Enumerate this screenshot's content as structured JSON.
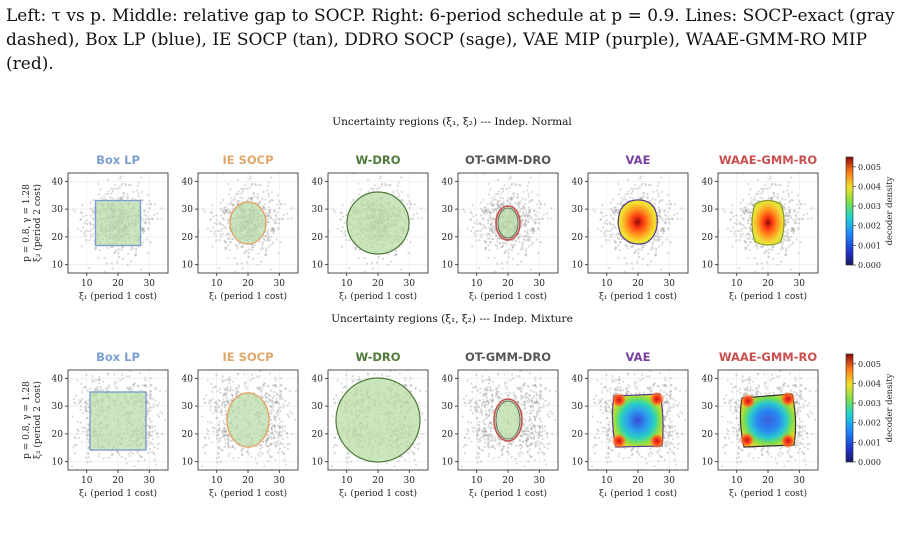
{
  "intro_text": "Left: τ vs p. Middle: relative gap to SOCP. Right: 6-period schedule at p = 0.9. Lines: SOCP-exact (gray dashed), Box LP (blue), IE SOCP (tan), DDRO SOCP (sage), VAE MIP (purple), WAAE-GMM-RO MIP (red).",
  "rows": [
    {
      "title": "Uncertainty regions  (ξ₁, ξ₂)  ---  Indep. Normal",
      "ylabel_line1": "p = 0.8,  γ = 1.28",
      "ylabel_line2": "ξ₂  (period 2 cost)"
    },
    {
      "title": "Uncertainty regions  (ξ₁, ξ₂)  ---  Indep. Mixture",
      "ylabel_line1": "p = 0.8,  γ = 1.28",
      "ylabel_line2": "ξ₂  (period 2 cost)"
    }
  ],
  "panels": [
    {
      "title": "Box LP",
      "color": "#7b9fd0"
    },
    {
      "title": "IE SOCP",
      "color": "#e0a86a"
    },
    {
      "title": "W-DRO",
      "color": "#4f7a3a"
    },
    {
      "title": "OT-GMM-DRO",
      "color": "#555555"
    },
    {
      "title": "VAE",
      "color": "#7a3fa0"
    },
    {
      "title": "WAAE-GMM-RO",
      "color": "#c94f4f"
    }
  ],
  "xlabel": "ξ₁  (period 1 cost)",
  "x_ticks": [
    "10",
    "20",
    "30"
  ],
  "y_ticks": [
    "10",
    "20",
    "30",
    "40"
  ],
  "colorbar": {
    "label": "decoder density",
    "ticks": [
      "0.000",
      "0.001",
      "0.002",
      "0.003",
      "0.004",
      "0.005"
    ]
  }
}
